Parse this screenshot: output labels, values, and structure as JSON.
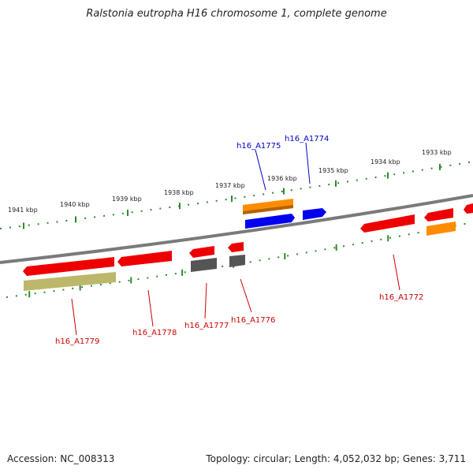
{
  "title": "Ralstonia eutropha H16 chromosome 1, complete genome",
  "footer": {
    "accession": "Accession: NC_008313",
    "topology": "Topology: circular; Length: 4,052,032 bp; Genes: 3,711"
  },
  "colors": {
    "backbone": "#7a7a7a",
    "tick": "#2e8b2e",
    "red_gene": "#ee0000",
    "orange_gene": "#ff8c00",
    "blue_gene": "#0000ee",
    "gray_gene": "#555555",
    "khaki_gene": "#bdb76b",
    "red_label": "#cc0000",
    "blue_label": "#0000cc"
  },
  "kbp_labels": [
    "1941 kbp",
    "1940 kbp",
    "1939 kbp",
    "1938 kbp",
    "1937 kbp",
    "1936 kbp",
    "1935 kbp",
    "1934 kbp",
    "1933 kbp"
  ],
  "gene_labels_top": [
    {
      "id": "A1775",
      "text": "h16_A1775"
    },
    {
      "id": "A1774",
      "text": "h16_A1774"
    }
  ],
  "gene_labels_bottom": [
    {
      "id": "A1779",
      "text": "h16_A1779"
    },
    {
      "id": "A1778",
      "text": "h16_A1778"
    },
    {
      "id": "A1777",
      "text": "h16_A1777"
    },
    {
      "id": "A1776",
      "text": "h16_A1776"
    },
    {
      "id": "A1772",
      "text": "h16_A1772"
    }
  ]
}
